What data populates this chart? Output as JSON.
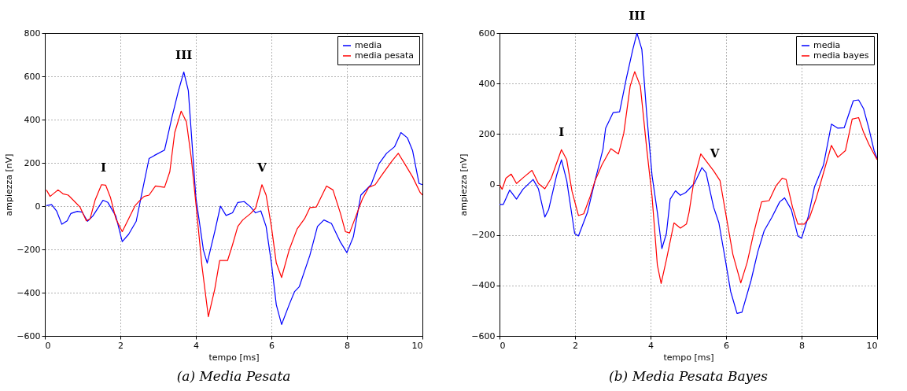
{
  "chart_data": [
    {
      "type": "line",
      "title": "(a) Media Pesata",
      "xlabel": "tempo [ms]",
      "ylabel": "ampiezza [nV]",
      "xlim": [
        0,
        10
      ],
      "xticks": [
        0,
        2,
        4,
        6,
        8,
        10
      ],
      "ylim": [
        -600,
        800
      ],
      "yticks": [
        -600,
        -400,
        -200,
        0,
        200,
        400,
        600,
        800
      ],
      "grid": true,
      "legend": "top right",
      "line_style": "solid",
      "annotations": [
        {
          "text": "I",
          "x": 1.55,
          "y": 99
        },
        {
          "text": "III",
          "x": 3.68,
          "y": 620
        },
        {
          "text": "V",
          "x": 5.75,
          "y": 99
        }
      ],
      "series": [
        {
          "name": "media",
          "color": "#0000ff",
          "x": [
            0.04,
            0.18,
            0.31,
            0.45,
            0.59,
            0.69,
            0.86,
            0.99,
            1.13,
            1.27,
            1.54,
            1.67,
            1.88,
            2.05,
            2.22,
            2.42,
            2.56,
            2.76,
            2.9,
            3.17,
            3.37,
            3.54,
            3.68,
            3.8,
            4.0,
            4.2,
            4.3,
            4.5,
            4.65,
            4.8,
            4.97,
            5.11,
            5.28,
            5.45,
            5.58,
            5.72,
            5.86,
            6.0,
            6.13,
            6.27,
            6.47,
            6.61,
            6.74,
            7.02,
            7.22,
            7.39,
            7.59,
            7.83,
            8.0,
            8.17,
            8.37,
            8.64,
            8.85,
            9.05,
            9.26,
            9.43,
            9.6,
            9.74,
            9.91,
            10.0
          ],
          "values": [
            2,
            7,
            -22,
            -84,
            -68,
            -34,
            -24,
            -28,
            -70,
            -46,
            27,
            17,
            -46,
            -164,
            -130,
            -70,
            51,
            220,
            234,
            259,
            413,
            534,
            620,
            534,
            40,
            -203,
            -263,
            -118,
            0,
            -43,
            -31,
            17,
            21,
            -4,
            -31,
            -22,
            -94,
            -263,
            -456,
            -547,
            -456,
            -396,
            -372,
            -227,
            -94,
            -64,
            -80,
            -167,
            -215,
            -142,
            51,
            99,
            196,
            244,
            274,
            340,
            316,
            256,
            105,
            99
          ]
        },
        {
          "name": "media pesata",
          "color": "#ff0000",
          "x": [
            0.04,
            0.14,
            0.35,
            0.48,
            0.62,
            0.79,
            0.93,
            1.1,
            1.2,
            1.33,
            1.5,
            1.61,
            1.74,
            1.88,
            2.05,
            2.22,
            2.39,
            2.52,
            2.63,
            2.76,
            2.93,
            3.17,
            3.31,
            3.44,
            3.61,
            3.75,
            3.88,
            4.02,
            4.16,
            4.33,
            4.5,
            4.63,
            4.84,
            4.97,
            5.11,
            5.24,
            5.45,
            5.58,
            5.75,
            5.86,
            6.0,
            6.13,
            6.27,
            6.47,
            6.68,
            6.88,
            7.02,
            7.19,
            7.46,
            7.63,
            7.83,
            7.96,
            8.07,
            8.24,
            8.41,
            8.58,
            8.75,
            8.89,
            9.19,
            9.36,
            9.53,
            9.74,
            9.94,
            10.0
          ],
          "values": [
            75,
            45,
            75,
            57,
            51,
            21,
            -4,
            -68,
            -58,
            27,
            99,
            97,
            39,
            -58,
            -118,
            -58,
            2,
            27,
            45,
            51,
            93,
            87,
            159,
            340,
            439,
            389,
            220,
            -22,
            -275,
            -511,
            -384,
            -251,
            -251,
            -179,
            -94,
            -64,
            -34,
            -10,
            99,
            51,
            -94,
            -263,
            -330,
            -203,
            -106,
            -58,
            -7,
            -4,
            93,
            75,
            -34,
            -118,
            -124,
            -46,
            33,
            87,
            99,
            135,
            208,
            244,
            196,
            135,
            63,
            51
          ]
        }
      ]
    },
    {
      "type": "line",
      "title": "(b) Media Pesata Bayes",
      "xlabel": "tempo [ms]",
      "ylabel": "ampiezza [nV]",
      "xlim": [
        0,
        10
      ],
      "xticks": [
        0,
        2,
        4,
        6,
        8,
        10
      ],
      "ylim": [
        -600,
        600
      ],
      "yticks": [
        -600,
        -400,
        -200,
        0,
        200,
        400,
        600
      ],
      "grid": true,
      "legend": "top right",
      "line_style": "solid",
      "annotations": [
        {
          "text": "I",
          "x": 1.64,
          "y": 138
        },
        {
          "text": "III",
          "x": 3.64,
          "y": 600
        },
        {
          "text": "V",
          "x": 5.7,
          "y": 54
        }
      ],
      "series": [
        {
          "name": "media",
          "color": "#0000ff",
          "x": [
            0,
            0.1,
            0.27,
            0.45,
            0.62,
            0.89,
            1.03,
            1.2,
            1.3,
            1.51,
            1.64,
            1.78,
            1.99,
            2.09,
            2.33,
            2.53,
            2.74,
            2.81,
            3.01,
            3.18,
            3.36,
            3.53,
            3.64,
            3.77,
            3.9,
            4.04,
            4.18,
            4.3,
            4.42,
            4.52,
            4.66,
            4.79,
            4.93,
            5.16,
            5.36,
            5.47,
            5.67,
            5.81,
            5.98,
            6.12,
            6.29,
            6.42,
            6.66,
            6.84,
            7.01,
            7.21,
            7.42,
            7.55,
            7.73,
            7.9,
            8.0,
            8.17,
            8.34,
            8.58,
            8.79,
            8.96,
            9.13,
            9.37,
            9.51,
            9.64,
            9.78,
            9.92,
            10.0
          ],
          "values": [
            -79,
            -79,
            -22,
            -58,
            -19,
            20,
            -17,
            -129,
            -100,
            35,
            98,
            15,
            -194,
            -204,
            -110,
            15,
            140,
            223,
            285,
            288,
            421,
            535,
            600,
            535,
            275,
            35,
            -110,
            -254,
            -194,
            -58,
            -25,
            -43,
            -32,
            4,
            67,
            46,
            -90,
            -152,
            -298,
            -423,
            -511,
            -506,
            -381,
            -267,
            -183,
            -131,
            -69,
            -53,
            -100,
            -204,
            -213,
            -131,
            -11,
            77,
            239,
            223,
            225,
            332,
            335,
            301,
            223,
            134,
            103
          ]
        },
        {
          "name": "media bayes",
          "color": "#ff0000",
          "x": [
            0,
            0.07,
            0.17,
            0.31,
            0.45,
            0.65,
            0.86,
            1.03,
            1.2,
            1.37,
            1.64,
            1.78,
            1.92,
            2.09,
            2.23,
            2.4,
            2.53,
            2.71,
            2.95,
            3.15,
            3.29,
            3.46,
            3.58,
            3.73,
            3.9,
            4.04,
            4.18,
            4.28,
            4.42,
            4.62,
            4.79,
            4.95,
            5.02,
            5.16,
            5.33,
            5.5,
            5.67,
            5.84,
            6.01,
            6.18,
            6.39,
            6.56,
            6.73,
            6.94,
            7.14,
            7.32,
            7.49,
            7.59,
            7.76,
            7.9,
            8.07,
            8.21,
            8.38,
            8.58,
            8.79,
            8.96,
            9.16,
            9.34,
            9.51,
            9.64,
            9.78,
            10.0
          ],
          "values": [
            -1,
            -19,
            25,
            41,
            4,
            30,
            56,
            4,
            -17,
            25,
            138,
            98,
            -27,
            -123,
            -116,
            -48,
            15,
            77,
            142,
            121,
            202,
            390,
            447,
            390,
            140,
            -48,
            -319,
            -392,
            -298,
            -152,
            -173,
            -157,
            -110,
            25,
            121,
            88,
            54,
            15,
            -131,
            -277,
            -390,
            -308,
            -194,
            -69,
            -64,
            -6,
            25,
            20,
            -90,
            -157,
            -157,
            -131,
            -58,
            46,
            155,
            108,
            134,
            259,
            265,
            207,
            160,
            98
          ]
        }
      ]
    }
  ]
}
